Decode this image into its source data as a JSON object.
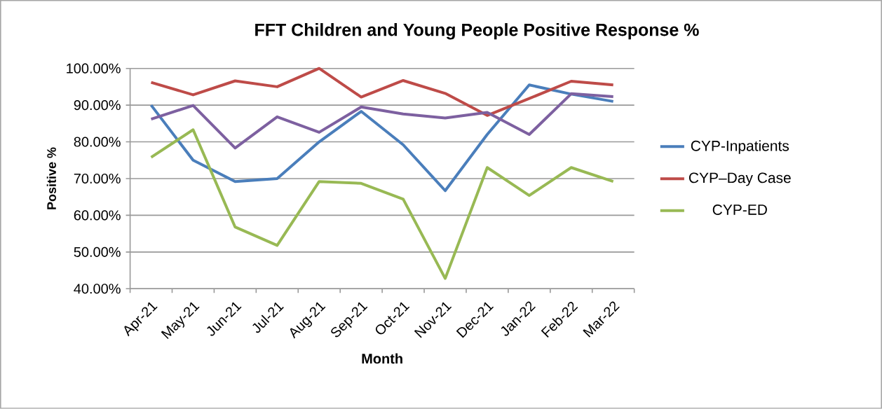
{
  "chart_data": {
    "type": "line",
    "title": "FFT Children and Young People Positive Response %",
    "xlabel": "Month",
    "ylabel": "Positive %",
    "categories": [
      "Apr-21",
      "May-21",
      "Jun-21",
      "Jul-21",
      "Aug-21",
      "Sep-21",
      "Oct-21",
      "Nov-21",
      "Dec-21",
      "Jan-22",
      "Feb-22",
      "Mar-22"
    ],
    "series": [
      {
        "name": "CYP-Inpatients",
        "color": "#4a7ebb",
        "values": [
          90,
          75,
          69.2,
          70,
          80,
          88.3,
          79.2,
          66.7,
          82,
          95.5,
          93,
          91
        ]
      },
      {
        "name": "CYP–Day Case",
        "color": "#be4b48",
        "values": [
          96.2,
          92.8,
          96.6,
          95,
          100,
          92.2,
          96.7,
          93.2,
          87.2,
          91.8,
          96.5,
          95.5
        ]
      },
      {
        "name": "CYP-ED",
        "color": "#98b954",
        "values": [
          75.8,
          83.3,
          56.8,
          51.8,
          69.2,
          68.7,
          64.4,
          42.8,
          73,
          65.4,
          73,
          69.2
        ]
      },
      {
        "color": "#7d60a0",
        "values": [
          86.2,
          89.9,
          78.3,
          86.8,
          82.6,
          89.5,
          87.6,
          86.5,
          88,
          82,
          93.1,
          92.3
        ]
      }
    ],
    "ylim": [
      40,
      100
    ],
    "yticks": [
      {
        "value": 40,
        "label": "40.00%"
      },
      {
        "value": 50,
        "label": "50.00%"
      },
      {
        "value": 60,
        "label": "60.00%"
      },
      {
        "value": 70,
        "label": "70.00%"
      },
      {
        "value": 80,
        "label": "80.00%"
      },
      {
        "value": 90,
        "label": "90.00%"
      },
      {
        "value": 100,
        "label": "100.00%"
      }
    ],
    "grid": "y",
    "legend": "right",
    "marker": "none",
    "line_style": "solid"
  }
}
